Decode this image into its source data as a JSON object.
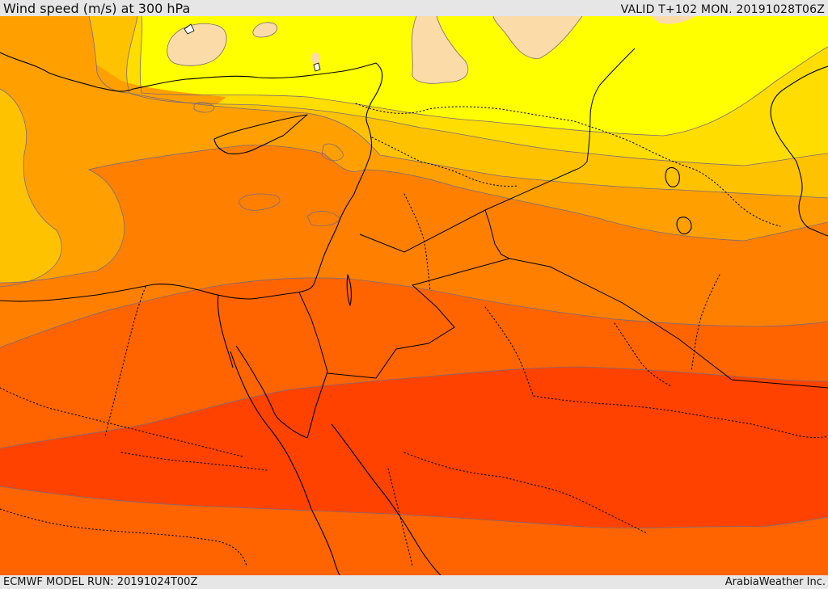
{
  "header": {
    "title": "Wind speed (m/s) at 300 hPa",
    "valid": "VALID T+102 MON. 20191028T06Z"
  },
  "footer": {
    "model_run": "ECMWF MODEL RUN: 20191024T00Z",
    "credit": "ArabiaWeather Inc."
  },
  "colors": {
    "band_pale": "#fbdca8",
    "band_yellow": "#ffff00",
    "band_gold": "#ffdd00",
    "band_amber": "#ffc200",
    "band_orange_light": "#ffa000",
    "band_orange": "#ff8000",
    "band_orange_red": "#ff6400",
    "band_red": "#ff4200",
    "contour_line": "#7a6a7a"
  }
}
